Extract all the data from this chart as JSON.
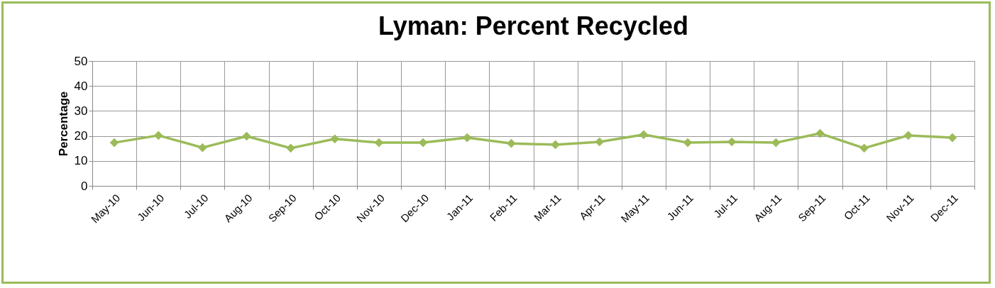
{
  "chart_data": {
    "type": "line",
    "title": "Lyman: Percent Recycled",
    "ylabel": "Percentage",
    "categories": [
      "May-10",
      "Jun-10",
      "Jul-10",
      "Aug-10",
      "Sep-10",
      "Oct-10",
      "Nov-10",
      "Dec-10",
      "Jan-11",
      "Feb-11",
      "Mar-11",
      "Apr-11",
      "May-11",
      "Jun-11",
      "Jul-11",
      "Aug-11",
      "Sep-11",
      "Oct-11",
      "Nov-11",
      "Dec-11"
    ],
    "series": [
      {
        "color": "#9bbb59",
        "values": [
          17.3,
          20.2,
          15.3,
          19.9,
          15.1,
          18.8,
          17.3,
          17.3,
          19.3,
          17.0,
          16.5,
          17.6,
          20.5,
          17.3,
          17.6,
          17.3,
          21.0,
          15.1,
          20.2,
          19.3
        ]
      }
    ],
    "ylim": [
      0,
      50
    ],
    "yticks": [
      0,
      10,
      20,
      30,
      40,
      50
    ],
    "grid": true,
    "marker": "diamond",
    "line_style": "solid"
  }
}
